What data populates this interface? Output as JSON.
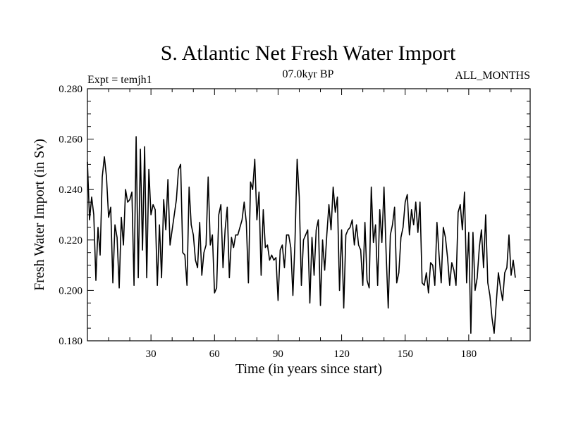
{
  "chart_data": {
    "type": "line",
    "title": "S. Atlantic Net Fresh Water Import",
    "subtitle_left": "Expt = temjh1",
    "subtitle_center": "07.0kyr BP",
    "subtitle_right": "ALL_MONTHS",
    "xlabel": "Time (in years since start)",
    "ylabel": "Fresh Water Import (in Sv)",
    "xlim": [
      0,
      209
    ],
    "ylim": [
      0.18,
      0.28
    ],
    "x_ticks": [
      30,
      60,
      90,
      120,
      150,
      180
    ],
    "y_ticks": [
      0.18,
      0.2,
      0.22,
      0.24,
      0.26,
      0.28
    ],
    "y_tick_labels": [
      "0.180",
      "0.200",
      "0.220",
      "0.240",
      "0.260",
      "0.280"
    ],
    "x_start": 0,
    "x_step": 1,
    "series": [
      {
        "name": "Fresh Water Import",
        "color": "#000000",
        "values": [
          0.251,
          0.228,
          0.237,
          0.23,
          0.204,
          0.225,
          0.214,
          0.245,
          0.253,
          0.245,
          0.229,
          0.233,
          0.203,
          0.226,
          0.221,
          0.201,
          0.229,
          0.218,
          0.24,
          0.235,
          0.236,
          0.239,
          0.202,
          0.261,
          0.205,
          0.256,
          0.216,
          0.257,
          0.205,
          0.248,
          0.23,
          0.234,
          0.232,
          0.202,
          0.226,
          0.205,
          0.236,
          0.224,
          0.244,
          0.218,
          0.224,
          0.23,
          0.236,
          0.248,
          0.25,
          0.215,
          0.214,
          0.202,
          0.241,
          0.226,
          0.222,
          0.212,
          0.209,
          0.227,
          0.206,
          0.215,
          0.218,
          0.245,
          0.218,
          0.222,
          0.199,
          0.201,
          0.23,
          0.234,
          0.209,
          0.224,
          0.233,
          0.205,
          0.221,
          0.217,
          0.222,
          0.222,
          0.225,
          0.228,
          0.235,
          0.227,
          0.203,
          0.243,
          0.24,
          0.252,
          0.228,
          0.239,
          0.206,
          0.232,
          0.217,
          0.218,
          0.212,
          0.214,
          0.212,
          0.213,
          0.196,
          0.216,
          0.218,
          0.209,
          0.222,
          0.222,
          0.217,
          0.198,
          0.22,
          0.252,
          0.237,
          0.202,
          0.22,
          0.222,
          0.224,
          0.195,
          0.221,
          0.206,
          0.224,
          0.228,
          0.194,
          0.22,
          0.208,
          0.222,
          0.234,
          0.224,
          0.241,
          0.231,
          0.237,
          0.2,
          0.224,
          0.193,
          0.222,
          0.224,
          0.225,
          0.228,
          0.218,
          0.226,
          0.218,
          0.216,
          0.202,
          0.227,
          0.204,
          0.201,
          0.241,
          0.219,
          0.226,
          0.202,
          0.232,
          0.219,
          0.241,
          0.215,
          0.193,
          0.222,
          0.226,
          0.233,
          0.203,
          0.207,
          0.221,
          0.225,
          0.235,
          0.238,
          0.222,
          0.232,
          0.226,
          0.235,
          0.223,
          0.235,
          0.203,
          0.202,
          0.207,
          0.199,
          0.211,
          0.21,
          0.202,
          0.227,
          0.214,
          0.203,
          0.225,
          0.221,
          0.213,
          0.202,
          0.211,
          0.208,
          0.202,
          0.231,
          0.234,
          0.224,
          0.239,
          0.203,
          0.223,
          0.183,
          0.223,
          0.2,
          0.205,
          0.217,
          0.224,
          0.209,
          0.23,
          0.203,
          0.198,
          0.189,
          0.183,
          0.195,
          0.207,
          0.201,
          0.196,
          0.207,
          0.209,
          0.222,
          0.206,
          0.212,
          0.205
        ]
      }
    ]
  }
}
